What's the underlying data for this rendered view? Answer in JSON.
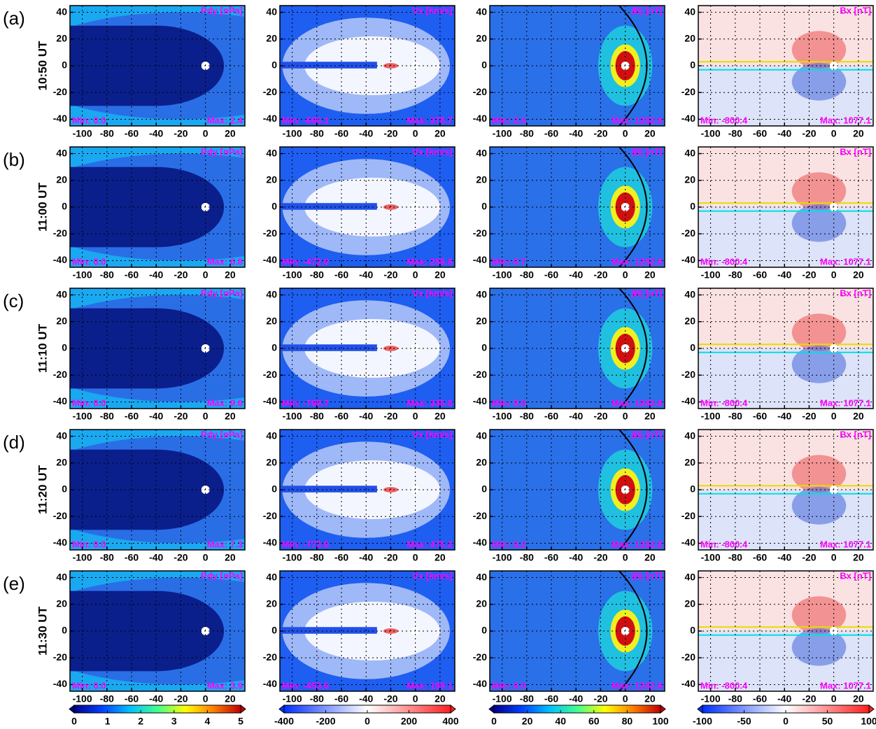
{
  "chart_data": {
    "type": "contour",
    "xlim": [
      -110,
      32
    ],
    "xticks": [
      -100,
      -80,
      -60,
      -40,
      -20,
      0,
      20
    ],
    "ylim": [
      -45,
      45
    ],
    "yticks": [
      -40,
      -20,
      0,
      20,
      40
    ],
    "grid": true,
    "rows": [
      {
        "label": "(a)",
        "time": "10:50 UT"
      },
      {
        "label": "(b)",
        "time": "11:00 UT"
      },
      {
        "label": "(c)",
        "time": "11:10 UT"
      },
      {
        "label": "(d)",
        "time": "11:20 UT"
      },
      {
        "label": "(e)",
        "time": "11:30 UT"
      }
    ],
    "columns": [
      {
        "title": "Pdy [nPa]",
        "colorbar": {
          "lim": [
            0,
            5
          ],
          "ticks": [
            0,
            1,
            2,
            3,
            4,
            5
          ],
          "colors": [
            "#00008b",
            "#0040ff",
            "#00c0ff",
            "#40ff90",
            "#ffff00",
            "#ff8000",
            "#c00000"
          ]
        }
      },
      {
        "title": "Vx [km/s]",
        "colorbar": {
          "lim": [
            -400,
            400
          ],
          "ticks": [
            -400,
            -200,
            0,
            200,
            400
          ],
          "colors": [
            "#0030ff",
            "#ffffff",
            "#ff2020"
          ]
        }
      },
      {
        "title": "|B| [nT]",
        "colorbar": {
          "lim": [
            0,
            100
          ],
          "ticks": [
            0,
            20,
            40,
            60,
            80,
            100
          ],
          "colors": [
            "#00008b",
            "#0040ff",
            "#00c0ff",
            "#40ff90",
            "#ffff00",
            "#ff8000",
            "#c00000"
          ]
        }
      },
      {
        "title": "Bx [nT]",
        "colorbar": {
          "lim": [
            -100,
            100
          ],
          "ticks": [
            -100,
            -50,
            0,
            50,
            100
          ],
          "colors": [
            "#0030ff",
            "#ffffff",
            "#ff2020"
          ]
        }
      }
    ],
    "panels": [
      [
        {
          "min": "Min: 0.0",
          "max": "Max: 2.4"
        },
        {
          "min": "Min: -666.1",
          "max": "Max: 378.7"
        },
        {
          "min": "Min: 2.4",
          "max": "Max: 1262.8"
        },
        {
          "min": "Min: -800.4",
          "max": "Max: 1077.1"
        }
      ],
      [
        {
          "min": "Min: 0.0",
          "max": "Max: 6.8"
        },
        {
          "min": "Min: -472.0",
          "max": "Max: 259.6"
        },
        {
          "min": "Min: 6.7",
          "max": "Max: 1262.8"
        },
        {
          "min": "Min: -800.4",
          "max": "Max: 1077.1"
        }
      ],
      [
        {
          "min": "Min: 0.0",
          "max": "Max: 9.6"
        },
        {
          "min": "Min: -768.7",
          "max": "Max: 335.0"
        },
        {
          "min": "Min: 5.0",
          "max": "Max: 1262.8"
        },
        {
          "min": "Min: -800.4",
          "max": "Max: 1077.1"
        }
      ],
      [
        {
          "min": "Min: 0.0",
          "max": "Max: 7.3"
        },
        {
          "min": "Min: -773.6",
          "max": "Max: 475.2"
        },
        {
          "min": "Min: 6.2",
          "max": "Max: 1262.8"
        },
        {
          "min": "Min: -800.4",
          "max": "Max: 1077.1"
        }
      ],
      [
        {
          "min": "Min: 0.0",
          "max": "Max: 3.9"
        },
        {
          "min": "Min: -453.6",
          "max": "Max: 199.1"
        },
        {
          "min": "Min: 6.0",
          "max": "Max: 1262.8"
        },
        {
          "min": "Min: -800.4",
          "max": "Max: 1077.1"
        }
      ]
    ]
  }
}
